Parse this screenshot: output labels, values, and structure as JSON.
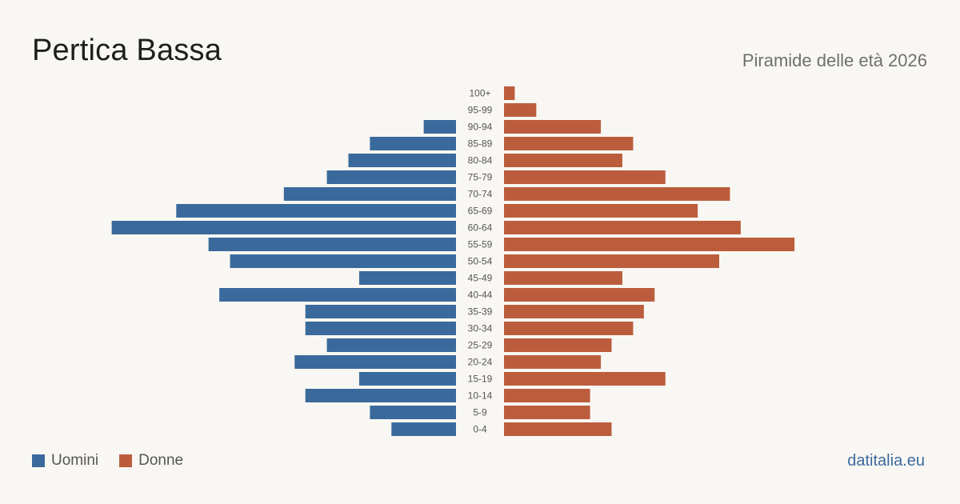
{
  "header": {
    "title": "Pertica Bassa",
    "subtitle": "Piramide delle età 2026"
  },
  "legend": {
    "men_label": "Uomini",
    "women_label": "Donne"
  },
  "footer": {
    "site": "datitalia.eu"
  },
  "colors": {
    "men": "#3a6a9b",
    "women": "#bb5d3c",
    "background": "#f9f7f3",
    "axis_label": "#555555"
  },
  "chart_data": {
    "type": "bar",
    "orientation": "horizontal-pyramid",
    "title": "Pertica Bassa",
    "subtitle": "Piramide delle età 2026",
    "categories": [
      "100+",
      "95-99",
      "90-94",
      "85-89",
      "80-84",
      "75-79",
      "70-74",
      "65-69",
      "60-64",
      "55-59",
      "50-54",
      "45-49",
      "40-44",
      "35-39",
      "30-34",
      "25-29",
      "20-24",
      "15-19",
      "10-14",
      "5-9",
      "0-4"
    ],
    "series": [
      {
        "name": "Uomini",
        "values": [
          0,
          0,
          3,
          8,
          10,
          12,
          16,
          26,
          32,
          23,
          21,
          9,
          22,
          14,
          14,
          12,
          15,
          9,
          14,
          8,
          6
        ]
      },
      {
        "name": "Donne",
        "values": [
          1,
          3,
          9,
          12,
          11,
          15,
          21,
          18,
          22,
          27,
          20,
          11,
          14,
          13,
          12,
          10,
          9,
          15,
          8,
          8,
          10
        ]
      }
    ],
    "legend_position": "bottom-left",
    "grid": false
  }
}
